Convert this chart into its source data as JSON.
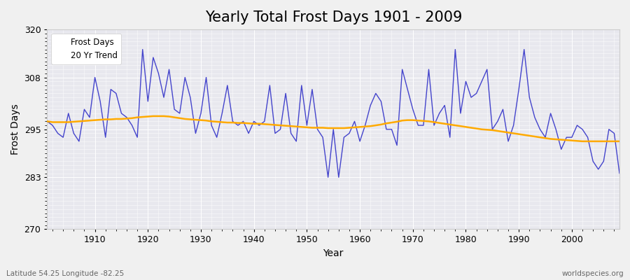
{
  "title": "Yearly Total Frost Days 1901 - 2009",
  "xlabel": "Year",
  "ylabel": "Frost Days",
  "xlim": [
    1901,
    2009
  ],
  "ylim": [
    270,
    320
  ],
  "yticks": [
    270,
    283,
    295,
    308,
    320
  ],
  "xticks": [
    1910,
    1920,
    1930,
    1940,
    1950,
    1960,
    1970,
    1980,
    1990,
    2000
  ],
  "frost_line_color": "#4444cc",
  "trend_line_color": "#ffaa00",
  "fig_bg_color": "#f0f0f0",
  "plot_bg_color": "#e8e8ee",
  "grid_color": "#ffffff",
  "title_fontsize": 15,
  "label_fontsize": 10,
  "tick_fontsize": 9,
  "legend_labels": [
    "Frost Days",
    "20 Yr Trend"
  ],
  "bottom_left_text": "Latitude 54.25 Longitude -82.25",
  "bottom_right_text": "worldspecies.org",
  "years": [
    1901,
    1902,
    1903,
    1904,
    1905,
    1906,
    1907,
    1908,
    1909,
    1910,
    1911,
    1912,
    1913,
    1914,
    1915,
    1916,
    1917,
    1918,
    1919,
    1920,
    1921,
    1922,
    1923,
    1924,
    1925,
    1926,
    1927,
    1928,
    1929,
    1930,
    1931,
    1932,
    1933,
    1934,
    1935,
    1936,
    1937,
    1938,
    1939,
    1940,
    1941,
    1942,
    1943,
    1944,
    1945,
    1946,
    1947,
    1948,
    1949,
    1950,
    1951,
    1952,
    1953,
    1954,
    1955,
    1956,
    1957,
    1958,
    1959,
    1960,
    1961,
    1962,
    1963,
    1964,
    1965,
    1966,
    1967,
    1968,
    1969,
    1970,
    1971,
    1972,
    1973,
    1974,
    1975,
    1976,
    1977,
    1978,
    1979,
    1980,
    1981,
    1982,
    1983,
    1984,
    1985,
    1986,
    1987,
    1988,
    1989,
    1990,
    1991,
    1992,
    1993,
    1994,
    1995,
    1996,
    1997,
    1998,
    1999,
    2000,
    2001,
    2002,
    2003,
    2004,
    2005,
    2006,
    2007,
    2008,
    2009
  ],
  "frost_days": [
    297,
    296,
    294,
    293,
    299,
    294,
    292,
    300,
    298,
    308,
    302,
    293,
    305,
    304,
    299,
    298,
    296,
    293,
    315,
    302,
    313,
    309,
    303,
    310,
    300,
    299,
    308,
    303,
    294,
    299,
    308,
    296,
    293,
    299,
    306,
    297,
    296,
    297,
    294,
    297,
    296,
    297,
    306,
    294,
    295,
    304,
    294,
    292,
    306,
    296,
    305,
    295,
    293,
    283,
    295,
    283,
    293,
    294,
    297,
    292,
    296,
    301,
    304,
    302,
    295,
    295,
    291,
    310,
    305,
    300,
    296,
    296,
    310,
    296,
    299,
    301,
    293,
    315,
    299,
    307,
    303,
    304,
    307,
    310,
    295,
    297,
    300,
    292,
    296,
    305,
    315,
    303,
    298,
    295,
    293,
    299,
    295,
    290,
    293,
    293,
    296,
    295,
    293,
    287,
    285,
    287,
    295,
    294,
    284
  ],
  "trend_days": [
    297.0,
    296.8,
    296.8,
    296.8,
    296.8,
    296.9,
    297.0,
    297.1,
    297.2,
    297.3,
    297.4,
    297.5,
    297.5,
    297.6,
    297.6,
    297.7,
    297.8,
    298.0,
    298.1,
    298.2,
    298.3,
    298.3,
    298.3,
    298.2,
    298.0,
    297.8,
    297.6,
    297.5,
    297.4,
    297.3,
    297.2,
    297.0,
    296.9,
    296.8,
    296.7,
    296.7,
    296.6,
    296.6,
    296.5,
    296.4,
    296.4,
    296.3,
    296.2,
    296.1,
    296.0,
    295.9,
    295.8,
    295.7,
    295.6,
    295.5,
    295.4,
    295.4,
    295.4,
    295.3,
    295.3,
    295.3,
    295.3,
    295.4,
    295.5,
    295.6,
    295.7,
    295.8,
    296.0,
    296.2,
    296.5,
    296.7,
    296.9,
    297.2,
    297.3,
    297.3,
    297.2,
    297.1,
    297.0,
    296.8,
    296.6,
    296.4,
    296.2,
    296.0,
    295.8,
    295.6,
    295.4,
    295.2,
    295.0,
    294.9,
    294.8,
    294.6,
    294.4,
    294.2,
    294.0,
    293.8,
    293.6,
    293.4,
    293.2,
    293.0,
    292.8,
    292.6,
    292.5,
    292.4,
    292.3,
    292.2,
    292.1,
    292.0,
    292.0,
    292.0,
    292.0,
    292.0,
    292.0,
    292.0,
    292.0
  ]
}
